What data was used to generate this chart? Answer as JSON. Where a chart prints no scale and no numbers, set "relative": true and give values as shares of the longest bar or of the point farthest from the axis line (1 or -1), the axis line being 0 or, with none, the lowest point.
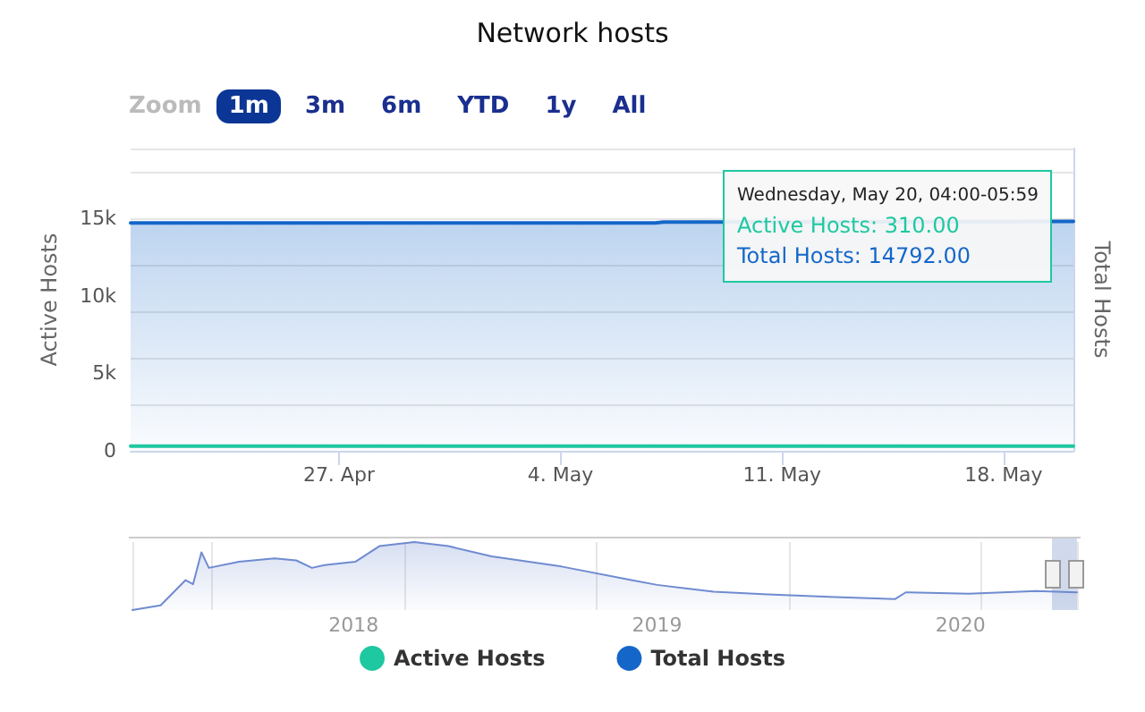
{
  "chart_data": [
    {
      "type": "line",
      "title": "Network hosts",
      "ylabel": "Active Hosts",
      "y2label": "Total Hosts",
      "annotations": [
        "Zoom",
        "1m",
        "3m",
        "6m",
        "YTD",
        "1y",
        "All",
        "Wednesday, May 20, 04:00-05:59",
        "Active Hosts: 310.00",
        "Total Hosts: 14792.00"
      ],
      "xlim": [
        "2020-04-20T10:00",
        "2020-05-20T05:00"
      ],
      "xticks": [
        {
          "value": "2020-04-27",
          "label": "27. Apr"
        },
        {
          "value": "2020-05-04",
          "label": "4. May"
        },
        {
          "value": "2020-05-11",
          "label": "11. May"
        },
        {
          "value": "2020-05-18",
          "label": "18. May"
        }
      ],
      "ylim": [
        0,
        19500
      ],
      "yticks": [
        {
          "value": 0,
          "label": "0"
        },
        {
          "value": 5000,
          "label": "5k"
        },
        {
          "value": 10000,
          "label": "10k"
        },
        {
          "value": 15000,
          "label": "15k"
        }
      ],
      "series": [
        {
          "name": "Active Hosts",
          "color": "#1ec8a0",
          "x": [
            "2020-04-20T10:00",
            "2020-05-20T05:00"
          ],
          "values": [
            310,
            310
          ]
        },
        {
          "name": "Total Hosts",
          "type": "area",
          "color": "#1467c8",
          "x": [
            "2020-04-20T10:00",
            "2020-05-07T00:00",
            "2020-05-07T06:00",
            "2020-05-20T05:00"
          ],
          "values": [
            14700,
            14700,
            14750,
            14792
          ]
        }
      ],
      "grid": "y",
      "legend": "bottom",
      "marker": "none"
    },
    {
      "type": "area",
      "relative": true,
      "x": [
        "2017-04-10",
        "2017-05-14",
        "2017-06-13",
        "2017-06-22",
        "2017-07-02",
        "2017-07-11",
        "2017-08-16",
        "2017-09-28",
        "2017-10-24",
        "2017-11-12",
        "2017-11-27",
        "2018-01-03",
        "2018-02-01",
        "2018-03-15",
        "2018-04-25",
        "2018-06-16",
        "2018-09-08",
        "2018-12-01",
        "2019-01-01",
        "2019-03-10",
        "2019-05-14",
        "2019-08-03",
        "2019-10-14",
        "2019-10-27",
        "2020-01-11",
        "2020-04-01",
        "2020-05-20"
      ],
      "values": [
        0,
        0.07,
        0.44,
        0.38,
        0.85,
        0.62,
        0.71,
        0.76,
        0.73,
        0.62,
        0.66,
        0.71,
        0.94,
        1,
        0.94,
        0.79,
        0.64,
        0.44,
        0.37,
        0.27,
        0.23,
        0.19,
        0.16,
        0.26,
        0.24,
        0.28,
        0.26
      ],
      "color": "#6f8bd0",
      "xlim": [
        "2017-04-10",
        "2020-05-20"
      ],
      "xticks": [
        {
          "value": "2018-01-01",
          "label": "2018"
        },
        {
          "value": "2019-01-01",
          "label": "2019"
        },
        {
          "value": "2020-01-01",
          "label": "2020"
        }
      ],
      "grid": "x",
      "tick_labels": "x",
      "marker": "none"
    }
  ]
}
